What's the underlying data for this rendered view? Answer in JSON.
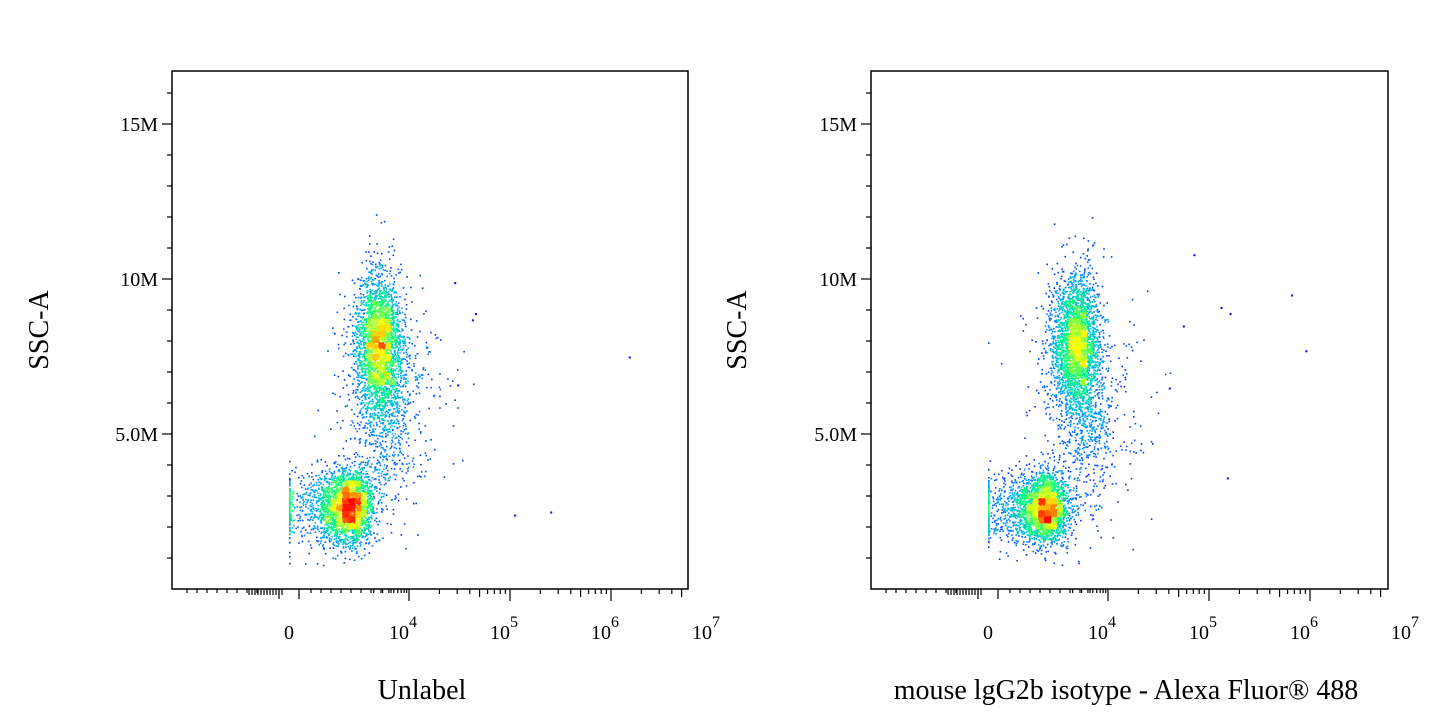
{
  "chart_data": [
    {
      "type": "scatter",
      "title": "",
      "xlabel": "Unlabel",
      "ylabel": "SSC-A",
      "xscale": "biexponential",
      "yticks": [
        {
          "value": 15000000,
          "label": "15M"
        },
        {
          "value": 10000000,
          "label": "10M"
        },
        {
          "value": 5000000,
          "label": "5.0M"
        }
      ],
      "xticks": [
        {
          "value": 0,
          "base": "0",
          "exp": ""
        },
        {
          "value": 10000,
          "base": "10",
          "exp": "4"
        },
        {
          "value": 100000,
          "base": "10",
          "exp": "5"
        },
        {
          "value": 1000000,
          "base": "10",
          "exp": "6"
        },
        {
          "value": 10000000,
          "base": "10",
          "exp": "7"
        }
      ],
      "populations": [
        {
          "x_center": 700,
          "y_center": 2700000,
          "x_spread": 0.65,
          "y_spread": 600000,
          "fraction": 0.45
        },
        {
          "x_center": 2800,
          "y_center": 8000000,
          "x_spread": 0.55,
          "y_spread": 1100000,
          "fraction": 0.4
        },
        {
          "x_center": 4000,
          "y_center": 6000000,
          "x_spread": 0.9,
          "y_spread": 1600000,
          "fraction": 0.15
        }
      ],
      "outliers": [
        {
          "x": 1500000,
          "y": 7500000
        },
        {
          "x": 250000,
          "y": 2500000
        },
        {
          "x": 110000,
          "y": 2400000
        },
        {
          "x": 45000,
          "y": 8900000
        },
        {
          "x": 42000,
          "y": 8700000
        },
        {
          "x": 28000,
          "y": 9900000
        },
        {
          "x": 30000,
          "y": 6600000
        }
      ],
      "color_scale": [
        "#0000ff",
        "#00a0ff",
        "#00ff80",
        "#ffff00",
        "#ff0000"
      ],
      "grid": false,
      "legend": "none"
    },
    {
      "type": "scatter",
      "title": "",
      "xlabel": "mouse lgG2b isotype - Alexa Fluor® 488",
      "ylabel": "SSC-A",
      "xscale": "biexponential",
      "yticks": [
        {
          "value": 15000000,
          "label": "15M"
        },
        {
          "value": 10000000,
          "label": "10M"
        },
        {
          "value": 5000000,
          "label": "5.0M"
        }
      ],
      "xticks": [
        {
          "value": 0,
          "base": "0",
          "exp": ""
        },
        {
          "value": 10000,
          "base": "10",
          "exp": "4"
        },
        {
          "value": 100000,
          "base": "10",
          "exp": "5"
        },
        {
          "value": 1000000,
          "base": "10",
          "exp": "6"
        },
        {
          "value": 10000000,
          "base": "10",
          "exp": "7"
        }
      ],
      "populations": [
        {
          "x_center": 600,
          "y_center": 2600000,
          "x_spread": 0.65,
          "y_spread": 550000,
          "fraction": 0.45
        },
        {
          "x_center": 2600,
          "y_center": 8000000,
          "x_spread": 0.55,
          "y_spread": 1100000,
          "fraction": 0.4
        },
        {
          "x_center": 4000,
          "y_center": 6000000,
          "x_spread": 0.9,
          "y_spread": 1600000,
          "fraction": 0.15
        }
      ],
      "outliers": [
        {
          "x": 900000,
          "y": 7700000
        },
        {
          "x": 650000,
          "y": 9500000
        },
        {
          "x": 160000,
          "y": 8900000
        },
        {
          "x": 130000,
          "y": 9100000
        },
        {
          "x": 150000,
          "y": 3600000
        },
        {
          "x": 70000,
          "y": 10800000
        },
        {
          "x": 55000,
          "y": 8500000
        },
        {
          "x": 40000,
          "y": 6500000
        }
      ],
      "color_scale": [
        "#0000ff",
        "#00a0ff",
        "#00ff80",
        "#ffff00",
        "#ff0000"
      ],
      "grid": false,
      "legend": "none"
    }
  ]
}
